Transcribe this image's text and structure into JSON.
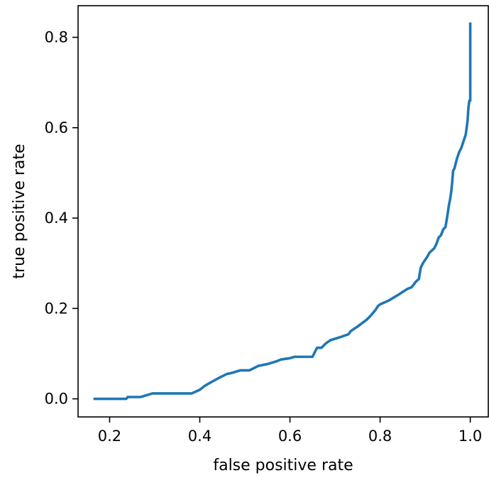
{
  "chart_data": {
    "type": "line",
    "title": "",
    "xlabel": "false positive rate",
    "ylabel": "true positive rate",
    "xlim": [
      0.13,
      1.04
    ],
    "ylim": [
      -0.04,
      0.87
    ],
    "xticks": [
      0.2,
      0.4,
      0.6,
      0.8,
      1.0
    ],
    "xtick_labels": [
      "0.2",
      "0.4",
      "0.6",
      "0.8",
      "1.0"
    ],
    "yticks": [
      0.0,
      0.2,
      0.4,
      0.6,
      0.8
    ],
    "ytick_labels": [
      "0.0",
      "0.2",
      "0.4",
      "0.6",
      "0.8"
    ],
    "grid": false,
    "legend": "none",
    "line_color": "#1f77b4",
    "series": [
      {
        "x": [
          0.167,
          0.22,
          0.237,
          0.24,
          0.268,
          0.272,
          0.295,
          0.3,
          0.33,
          0.36,
          0.382,
          0.4,
          0.41,
          0.42,
          0.44,
          0.46,
          0.47,
          0.49,
          0.51,
          0.53,
          0.55,
          0.57,
          0.58,
          0.6,
          0.61,
          0.63,
          0.65,
          0.66,
          0.67,
          0.68,
          0.69,
          0.71,
          0.73,
          0.735,
          0.75,
          0.77,
          0.78,
          0.79,
          0.795,
          0.8,
          0.82,
          0.84,
          0.86,
          0.87,
          0.88,
          0.886,
          0.89,
          0.895,
          0.905,
          0.91,
          0.92,
          0.925,
          0.93,
          0.935,
          0.94,
          0.945,
          0.95,
          0.952,
          0.955,
          0.958,
          0.96,
          0.962,
          0.965,
          0.97,
          0.975,
          0.98,
          0.985,
          0.99,
          0.992,
          0.994,
          0.996,
          0.998,
          1.0,
          1.0
        ],
        "y": [
          0.0,
          0.0,
          0.0,
          0.004,
          0.004,
          0.005,
          0.012,
          0.012,
          0.012,
          0.012,
          0.012,
          0.02,
          0.028,
          0.034,
          0.045,
          0.055,
          0.057,
          0.063,
          0.063,
          0.073,
          0.077,
          0.083,
          0.087,
          0.09,
          0.093,
          0.093,
          0.093,
          0.113,
          0.113,
          0.123,
          0.13,
          0.136,
          0.143,
          0.15,
          0.16,
          0.175,
          0.185,
          0.197,
          0.205,
          0.209,
          0.218,
          0.23,
          0.243,
          0.247,
          0.26,
          0.265,
          0.29,
          0.3,
          0.315,
          0.324,
          0.333,
          0.343,
          0.357,
          0.362,
          0.375,
          0.38,
          0.41,
          0.425,
          0.44,
          0.46,
          0.48,
          0.505,
          0.51,
          0.53,
          0.545,
          0.555,
          0.57,
          0.585,
          0.6,
          0.615,
          0.645,
          0.66,
          0.66,
          0.83
        ]
      }
    ]
  }
}
